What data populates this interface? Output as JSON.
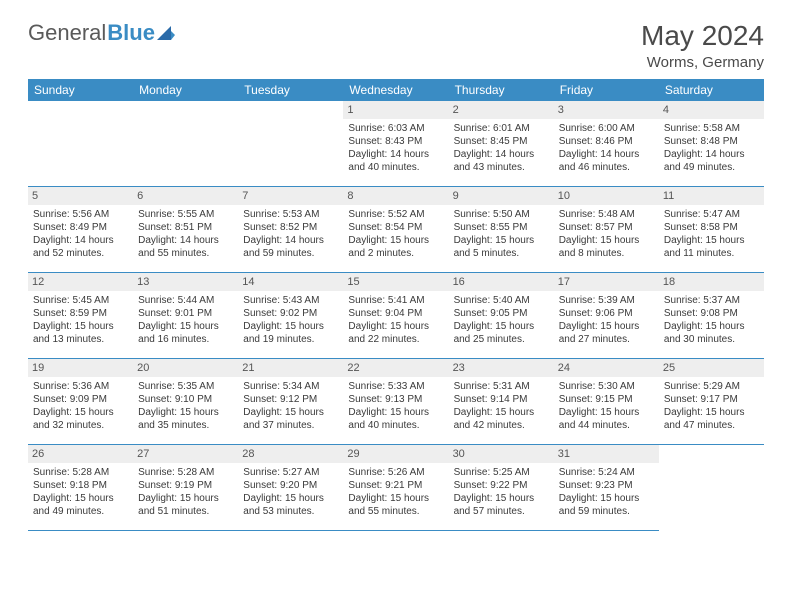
{
  "logo": {
    "text1": "General",
    "text2": "Blue"
  },
  "title": "May 2024",
  "location": "Worms, Germany",
  "header_bg": "#3a8cc4",
  "daynum_bg": "#eeeeee",
  "weekdays": [
    "Sunday",
    "Monday",
    "Tuesday",
    "Wednesday",
    "Thursday",
    "Friday",
    "Saturday"
  ],
  "first_weekday": 3,
  "days": [
    {
      "n": "1",
      "sr": "6:03 AM",
      "ss": "8:43 PM",
      "dl": "14 hours and 40 minutes."
    },
    {
      "n": "2",
      "sr": "6:01 AM",
      "ss": "8:45 PM",
      "dl": "14 hours and 43 minutes."
    },
    {
      "n": "3",
      "sr": "6:00 AM",
      "ss": "8:46 PM",
      "dl": "14 hours and 46 minutes."
    },
    {
      "n": "4",
      "sr": "5:58 AM",
      "ss": "8:48 PM",
      "dl": "14 hours and 49 minutes."
    },
    {
      "n": "5",
      "sr": "5:56 AM",
      "ss": "8:49 PM",
      "dl": "14 hours and 52 minutes."
    },
    {
      "n": "6",
      "sr": "5:55 AM",
      "ss": "8:51 PM",
      "dl": "14 hours and 55 minutes."
    },
    {
      "n": "7",
      "sr": "5:53 AM",
      "ss": "8:52 PM",
      "dl": "14 hours and 59 minutes."
    },
    {
      "n": "8",
      "sr": "5:52 AM",
      "ss": "8:54 PM",
      "dl": "15 hours and 2 minutes."
    },
    {
      "n": "9",
      "sr": "5:50 AM",
      "ss": "8:55 PM",
      "dl": "15 hours and 5 minutes."
    },
    {
      "n": "10",
      "sr": "5:48 AM",
      "ss": "8:57 PM",
      "dl": "15 hours and 8 minutes."
    },
    {
      "n": "11",
      "sr": "5:47 AM",
      "ss": "8:58 PM",
      "dl": "15 hours and 11 minutes."
    },
    {
      "n": "12",
      "sr": "5:45 AM",
      "ss": "8:59 PM",
      "dl": "15 hours and 13 minutes."
    },
    {
      "n": "13",
      "sr": "5:44 AM",
      "ss": "9:01 PM",
      "dl": "15 hours and 16 minutes."
    },
    {
      "n": "14",
      "sr": "5:43 AM",
      "ss": "9:02 PM",
      "dl": "15 hours and 19 minutes."
    },
    {
      "n": "15",
      "sr": "5:41 AM",
      "ss": "9:04 PM",
      "dl": "15 hours and 22 minutes."
    },
    {
      "n": "16",
      "sr": "5:40 AM",
      "ss": "9:05 PM",
      "dl": "15 hours and 25 minutes."
    },
    {
      "n": "17",
      "sr": "5:39 AM",
      "ss": "9:06 PM",
      "dl": "15 hours and 27 minutes."
    },
    {
      "n": "18",
      "sr": "5:37 AM",
      "ss": "9:08 PM",
      "dl": "15 hours and 30 minutes."
    },
    {
      "n": "19",
      "sr": "5:36 AM",
      "ss": "9:09 PM",
      "dl": "15 hours and 32 minutes."
    },
    {
      "n": "20",
      "sr": "5:35 AM",
      "ss": "9:10 PM",
      "dl": "15 hours and 35 minutes."
    },
    {
      "n": "21",
      "sr": "5:34 AM",
      "ss": "9:12 PM",
      "dl": "15 hours and 37 minutes."
    },
    {
      "n": "22",
      "sr": "5:33 AM",
      "ss": "9:13 PM",
      "dl": "15 hours and 40 minutes."
    },
    {
      "n": "23",
      "sr": "5:31 AM",
      "ss": "9:14 PM",
      "dl": "15 hours and 42 minutes."
    },
    {
      "n": "24",
      "sr": "5:30 AM",
      "ss": "9:15 PM",
      "dl": "15 hours and 44 minutes."
    },
    {
      "n": "25",
      "sr": "5:29 AM",
      "ss": "9:17 PM",
      "dl": "15 hours and 47 minutes."
    },
    {
      "n": "26",
      "sr": "5:28 AM",
      "ss": "9:18 PM",
      "dl": "15 hours and 49 minutes."
    },
    {
      "n": "27",
      "sr": "5:28 AM",
      "ss": "9:19 PM",
      "dl": "15 hours and 51 minutes."
    },
    {
      "n": "28",
      "sr": "5:27 AM",
      "ss": "9:20 PM",
      "dl": "15 hours and 53 minutes."
    },
    {
      "n": "29",
      "sr": "5:26 AM",
      "ss": "9:21 PM",
      "dl": "15 hours and 55 minutes."
    },
    {
      "n": "30",
      "sr": "5:25 AM",
      "ss": "9:22 PM",
      "dl": "15 hours and 57 minutes."
    },
    {
      "n": "31",
      "sr": "5:24 AM",
      "ss": "9:23 PM",
      "dl": "15 hours and 59 minutes."
    }
  ],
  "labels": {
    "sunrise": "Sunrise:",
    "sunset": "Sunset:",
    "daylight": "Daylight:"
  }
}
